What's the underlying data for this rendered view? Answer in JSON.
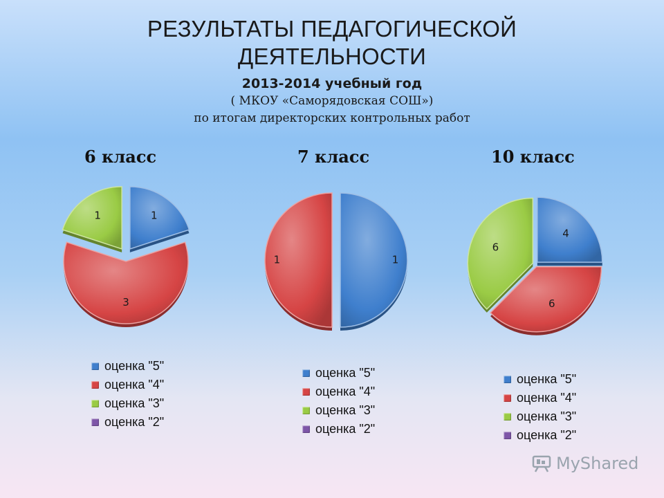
{
  "header": {
    "title_line1": "РЕЗУЛЬТАТЫ ПЕДАГОГИЧЕСКОЙ",
    "title_line2": "ДЕЯТЕЛЬНОСТИ",
    "year": "2013-2014 учебный год",
    "school": "( МКОУ «Саморядовская СОШ»)",
    "basis": "по итогам директорских контрольных работ"
  },
  "colors": {
    "grade5": "#3f7fcd",
    "grade4": "#d64545",
    "grade3": "#9acb45",
    "grade2": "#7e56a8"
  },
  "chart_data": [
    {
      "type": "pie",
      "title": "6 класс",
      "categories": [
        "оценка \"5\"",
        "оценка \"4\"",
        "оценка \"3\"",
        "оценка \"2\""
      ],
      "values": [
        1,
        3,
        1,
        0
      ],
      "legend": [
        "оценка \"5\"",
        "оценка \"4\"",
        "оценка \"3\"",
        "оценка \"2\""
      ]
    },
    {
      "type": "pie",
      "title": "7 класс",
      "categories": [
        "оценка \"5\"",
        "оценка \"4\"",
        "оценка \"3\"",
        "оценка \"2\""
      ],
      "values": [
        1,
        1,
        0,
        0
      ],
      "legend": [
        "оценка \"5\"",
        "оценка \"4\"",
        "оценка \"3\"",
        "оценка \"2\""
      ]
    },
    {
      "type": "pie",
      "title": "10 класс",
      "categories": [
        "оценка \"5\"",
        "оценка \"4\"",
        "оценка \"3\"",
        "оценка \"2\""
      ],
      "values": [
        4,
        6,
        6,
        0
      ],
      "legend": [
        "оценка \"5\"",
        "оценка \"4\"",
        "оценка \"3\"",
        "оценка \"2\""
      ]
    }
  ],
  "watermark": {
    "text": "MyShared",
    "icon": "presentation-board-icon"
  }
}
